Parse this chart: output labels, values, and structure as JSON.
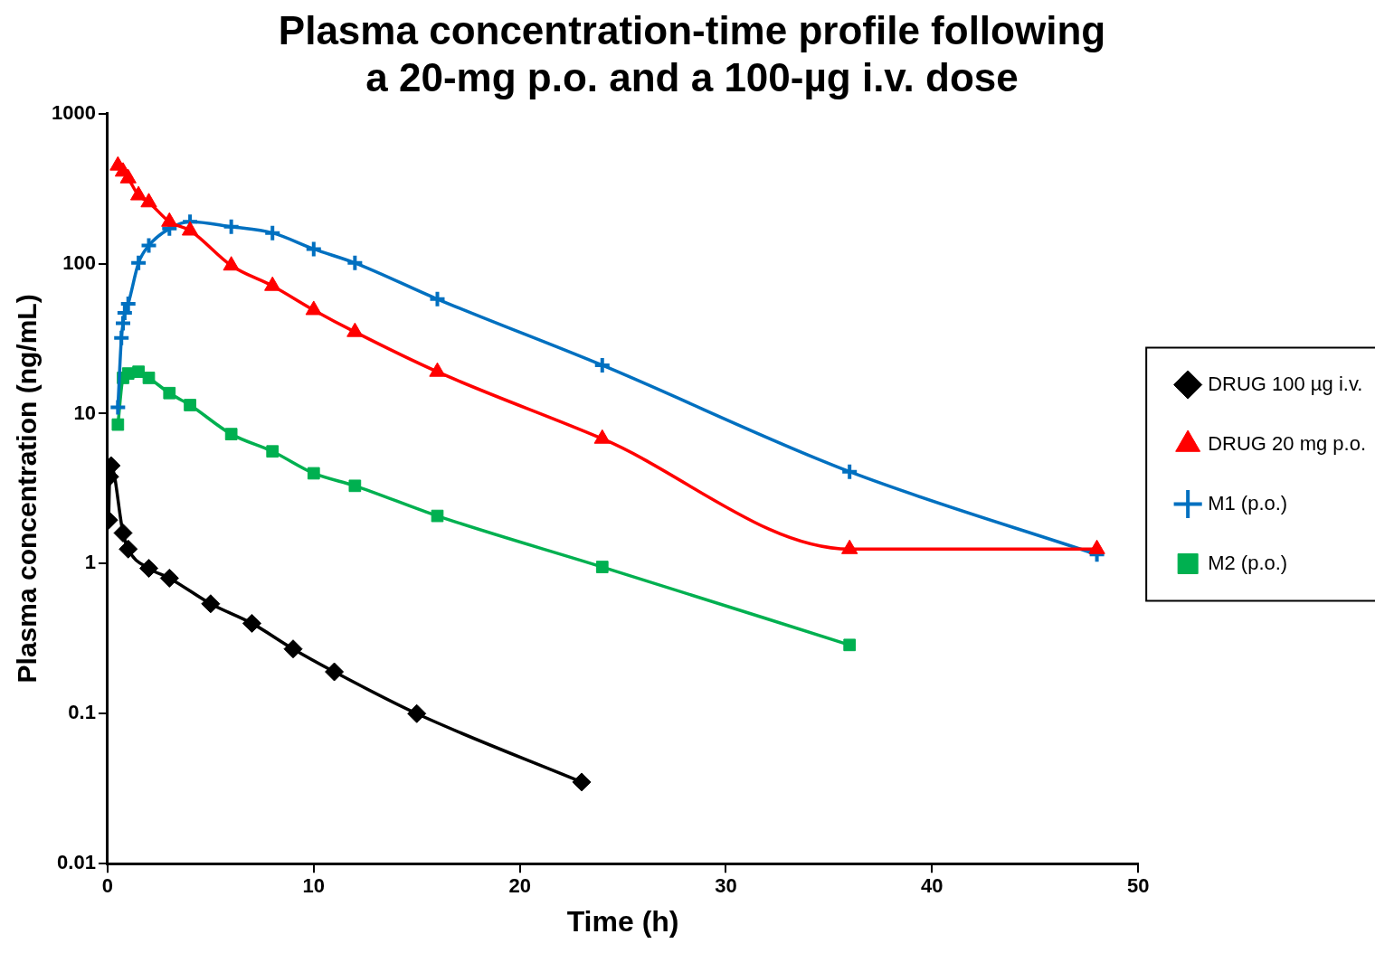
{
  "chart_data": {
    "type": "line",
    "title": "Plasma concentration-time profile following a 20-mg p.o. and a 100-µg i.v. dose",
    "xlabel": "Time (h)",
    "ylabel": "Plasma concentration (ng/mL)",
    "log": "y",
    "grid": false,
    "legend": "right",
    "xlim": [
      0,
      50
    ],
    "xticks": [
      0,
      10,
      20,
      30,
      40,
      50
    ],
    "ylim": [
      0.01,
      1000
    ],
    "yticks": [
      0.01,
      0.1,
      1,
      10,
      100,
      1000
    ],
    "series": [
      {
        "name": "DRUG 100 µg i.v.",
        "color": "#000000",
        "marker": "diamond",
        "x": [
          0.05,
          0.1,
          0.17,
          0.75,
          1,
          2,
          3,
          5,
          7,
          9,
          11,
          15,
          23
        ],
        "values": [
          1.95,
          3.8,
          4.5,
          1.6,
          1.25,
          0.93,
          0.8,
          0.54,
          0.4,
          0.27,
          0.19,
          0.1,
          0.035
        ]
      },
      {
        "name": "DRUG 20 mg p.o.",
        "color": "#ff0000",
        "marker": "triangle",
        "x": [
          0.5,
          0.75,
          1,
          1.5,
          2,
          3,
          4,
          6,
          8,
          10,
          12,
          16,
          24,
          36,
          48
        ],
        "values": [
          450,
          410,
          370,
          285,
          256,
          190,
          166,
          97,
          71,
          49,
          35,
          19,
          6.8,
          1.25,
          1.25
        ]
      },
      {
        "name": "M1 (p.o.)",
        "color": "#0070c0",
        "marker": "cross",
        "x": [
          0.5,
          0.67,
          0.75,
          0.83,
          1,
          1.5,
          2,
          3,
          4,
          6,
          8,
          10,
          12,
          16,
          24,
          36,
          48
        ],
        "values": [
          11,
          32,
          40,
          47,
          54,
          101,
          132,
          171,
          190,
          176,
          160,
          125,
          101,
          58,
          21,
          4.1,
          1.15
        ]
      },
      {
        "name": "M2 (p.o.)",
        "color": "#00b050",
        "marker": "square",
        "x": [
          0.5,
          0.75,
          1,
          1.5,
          2,
          3,
          4,
          6,
          8,
          10,
          12,
          16,
          24,
          36
        ],
        "values": [
          8.45,
          17.3,
          18.5,
          19,
          17.3,
          13.7,
          11.4,
          7.3,
          5.6,
          4.0,
          3.3,
          2.08,
          0.95,
          0.287
        ]
      }
    ]
  }
}
